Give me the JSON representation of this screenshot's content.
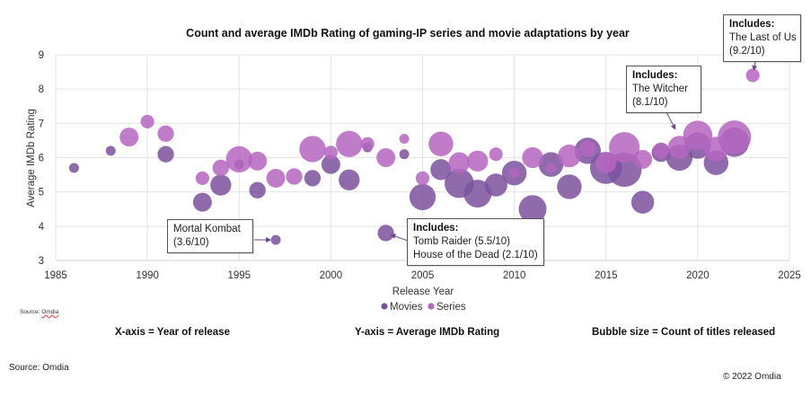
{
  "chart_data": {
    "type": "bubble",
    "title": "Count and average IMDb Rating of gaming-IP series and movie adaptations by year",
    "xlabel": "Release Year",
    "ylabel": "Average IMDb Rating",
    "xlim": [
      1985,
      2025
    ],
    "ylim": [
      3,
      9
    ],
    "x_ticks": [
      1985,
      1990,
      1995,
      2000,
      2005,
      2010,
      2015,
      2020,
      2025
    ],
    "y_ticks": [
      3,
      4,
      5,
      6,
      7,
      8,
      9
    ],
    "grid": true,
    "legend_position": "bottom",
    "series": [
      {
        "name": "Movies",
        "color": "#7B519D",
        "points": [
          {
            "x": 1986,
            "y": 5.7,
            "count": 1
          },
          {
            "x": 1988,
            "y": 6.2,
            "count": 1
          },
          {
            "x": 1991,
            "y": 6.1,
            "count": 3
          },
          {
            "x": 1993,
            "y": 4.7,
            "count": 4
          },
          {
            "x": 1994,
            "y": 5.2,
            "count": 5
          },
          {
            "x": 1995,
            "y": 5.8,
            "count": 1
          },
          {
            "x": 1996,
            "y": 5.05,
            "count": 3
          },
          {
            "x": 1997,
            "y": 3.6,
            "count": 1
          },
          {
            "x": 1999,
            "y": 5.4,
            "count": 3
          },
          {
            "x": 2000,
            "y": 5.8,
            "count": 4
          },
          {
            "x": 2001,
            "y": 5.35,
            "count": 5
          },
          {
            "x": 2002,
            "y": 6.3,
            "count": 1
          },
          {
            "x": 2003,
            "y": 3.8,
            "count": 3
          },
          {
            "x": 2004,
            "y": 6.1,
            "count": 1
          },
          {
            "x": 2005,
            "y": 4.85,
            "count": 8
          },
          {
            "x": 2006,
            "y": 5.65,
            "count": 5
          },
          {
            "x": 2007,
            "y": 5.25,
            "count": 10
          },
          {
            "x": 2008,
            "y": 4.95,
            "count": 9
          },
          {
            "x": 2009,
            "y": 5.2,
            "count": 6
          },
          {
            "x": 2010,
            "y": 5.55,
            "count": 7
          },
          {
            "x": 2011,
            "y": 4.5,
            "count": 9
          },
          {
            "x": 2012,
            "y": 5.8,
            "count": 7
          },
          {
            "x": 2013,
            "y": 5.15,
            "count": 7
          },
          {
            "x": 2014,
            "y": 6.2,
            "count": 8
          },
          {
            "x": 2015,
            "y": 5.7,
            "count": 12
          },
          {
            "x": 2016,
            "y": 5.65,
            "count": 14
          },
          {
            "x": 2017,
            "y": 4.7,
            "count": 6
          },
          {
            "x": 2018,
            "y": 6.15,
            "count": 4
          },
          {
            "x": 2019,
            "y": 6.0,
            "count": 8
          },
          {
            "x": 2020,
            "y": 6.35,
            "count": 8
          },
          {
            "x": 2021,
            "y": 5.85,
            "count": 7
          },
          {
            "x": 2022,
            "y": 6.45,
            "count": 10
          }
        ]
      },
      {
        "name": "Series",
        "color": "#B565C0",
        "points": [
          {
            "x": 1989,
            "y": 6.6,
            "count": 4
          },
          {
            "x": 1990,
            "y": 7.05,
            "count": 2
          },
          {
            "x": 1991,
            "y": 6.7,
            "count": 3
          },
          {
            "x": 1993,
            "y": 5.4,
            "count": 2
          },
          {
            "x": 1994,
            "y": 5.7,
            "count": 3
          },
          {
            "x": 1995,
            "y": 5.95,
            "count": 8
          },
          {
            "x": 1996,
            "y": 5.9,
            "count": 4
          },
          {
            "x": 1997,
            "y": 5.4,
            "count": 4
          },
          {
            "x": 1998,
            "y": 5.45,
            "count": 3
          },
          {
            "x": 1999,
            "y": 6.25,
            "count": 8
          },
          {
            "x": 2000,
            "y": 6.15,
            "count": 2
          },
          {
            "x": 2001,
            "y": 6.4,
            "count": 8
          },
          {
            "x": 2002,
            "y": 6.4,
            "count": 2
          },
          {
            "x": 2003,
            "y": 6.0,
            "count": 4
          },
          {
            "x": 2004,
            "y": 6.55,
            "count": 1
          },
          {
            "x": 2005,
            "y": 5.4,
            "count": 2
          },
          {
            "x": 2006,
            "y": 6.4,
            "count": 7
          },
          {
            "x": 2007,
            "y": 5.85,
            "count": 5
          },
          {
            "x": 2008,
            "y": 5.9,
            "count": 5
          },
          {
            "x": 2009,
            "y": 6.1,
            "count": 2
          },
          {
            "x": 2010,
            "y": 5.55,
            "count": 1
          },
          {
            "x": 2011,
            "y": 6.0,
            "count": 5
          },
          {
            "x": 2012,
            "y": 5.7,
            "count": 1
          },
          {
            "x": 2013,
            "y": 6.05,
            "count": 6
          },
          {
            "x": 2014,
            "y": 6.25,
            "count": 3
          },
          {
            "x": 2015,
            "y": 5.85,
            "count": 5
          },
          {
            "x": 2016,
            "y": 6.3,
            "count": 11
          },
          {
            "x": 2017,
            "y": 5.95,
            "count": 4
          },
          {
            "x": 2018,
            "y": 6.2,
            "count": 3
          },
          {
            "x": 2019,
            "y": 6.3,
            "count": 6
          },
          {
            "x": 2020,
            "y": 6.65,
            "count": 10
          },
          {
            "x": 2021,
            "y": 6.25,
            "count": 7
          },
          {
            "x": 2022,
            "y": 6.6,
            "count": 13
          },
          {
            "x": 2023,
            "y": 8.4,
            "count": 2
          }
        ]
      }
    ],
    "annotations": [
      {
        "id": "mortal-kombat",
        "heading": "",
        "lines": [
          "Mortal Kombat",
          "(3.6/10)"
        ],
        "target": {
          "x": 1997,
          "y": 3.6
        }
      },
      {
        "id": "tomb-raider",
        "heading": "Includes:",
        "lines": [
          "Tomb Raider (5.5/10)",
          "House of the Dead (2.1/10)"
        ],
        "target": {
          "x": 2003,
          "y": 3.8
        }
      },
      {
        "id": "witcher",
        "heading": "Includes:",
        "lines": [
          "The Witcher",
          "(8.1/10)"
        ],
        "target": {
          "x": 2019,
          "y": 6.6
        }
      },
      {
        "id": "last-of-us",
        "heading": "Includes:",
        "lines": [
          "The Last of Us",
          "(9.2/10)"
        ],
        "target": {
          "x": 2023,
          "y": 8.4
        }
      }
    ]
  },
  "captions": {
    "source_small": "Source: ",
    "source_small_org": "Omdia",
    "x_axis_note": "X-axis = Year of release",
    "y_axis_note": "Y-axis = Average IMDb Rating",
    "bubble_note": "Bubble size = Count of titles released",
    "source": "Source: Omdia",
    "copyright": "© 2022 Omdia"
  }
}
